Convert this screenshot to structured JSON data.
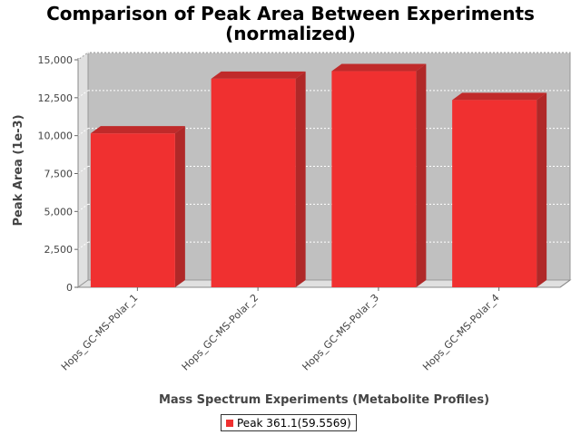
{
  "chart_data": {
    "type": "bar",
    "title": "Comparison of Peak Area Between Experiments",
    "subtitle": "(normalized)",
    "xlabel": "Mass Spectrum Experiments (Metabolite Profiles)",
    "ylabel": "Peak Area (1e-3)",
    "categories": [
      "Hops_GC-MS-Polar_1",
      "Hops_GC-MS-Polar_2",
      "Hops_GC-MS-Polar_3",
      "Hops_GC-MS-Polar_4"
    ],
    "series": [
      {
        "name": "Peak 361.1(59.5569)",
        "values": [
          10150,
          13750,
          14250,
          12350
        ]
      }
    ],
    "ylim": [
      0,
      15000
    ],
    "yticks": [
      0,
      2500,
      5000,
      7500,
      10000,
      12500,
      15000
    ],
    "ytick_labels": [
      "0",
      "2,500",
      "5,000",
      "7,500",
      "10,000",
      "12,500",
      "15,000"
    ],
    "grid": true,
    "legend_position": "bottom",
    "style": "3d-bar",
    "colors": {
      "bar_front": "#f03030",
      "bar_top": "#c02a2a",
      "bar_side": "#b02828",
      "plot_back": "#c0c0c0",
      "plot_wall": "#e0e0e0",
      "axis_text": "#444444"
    }
  }
}
